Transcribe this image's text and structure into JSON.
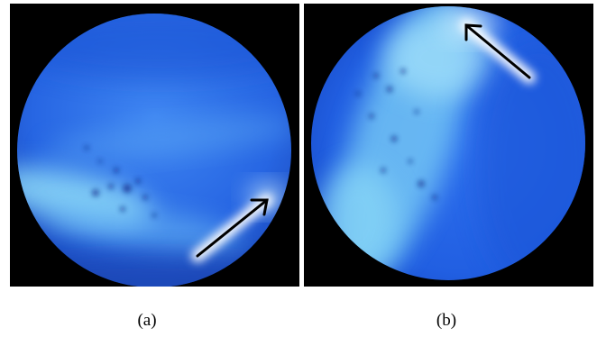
{
  "figure": {
    "panels": [
      {
        "caption": "(a)",
        "image_name": "endoscopic-blue-fluorescence-view-a",
        "arrow_direction": "up-right"
      },
      {
        "caption": "(b)",
        "image_name": "endoscopic-blue-fluorescence-view-b",
        "arrow_direction": "up-left"
      }
    ],
    "colors": {
      "background": "#000000",
      "tissue_deep": "#1f5fe0",
      "tissue_mid": "#3f86f2",
      "tissue_highlight": "#8fdcf8",
      "arrow": "#000000",
      "arrow_glow": "#ffffff"
    }
  }
}
